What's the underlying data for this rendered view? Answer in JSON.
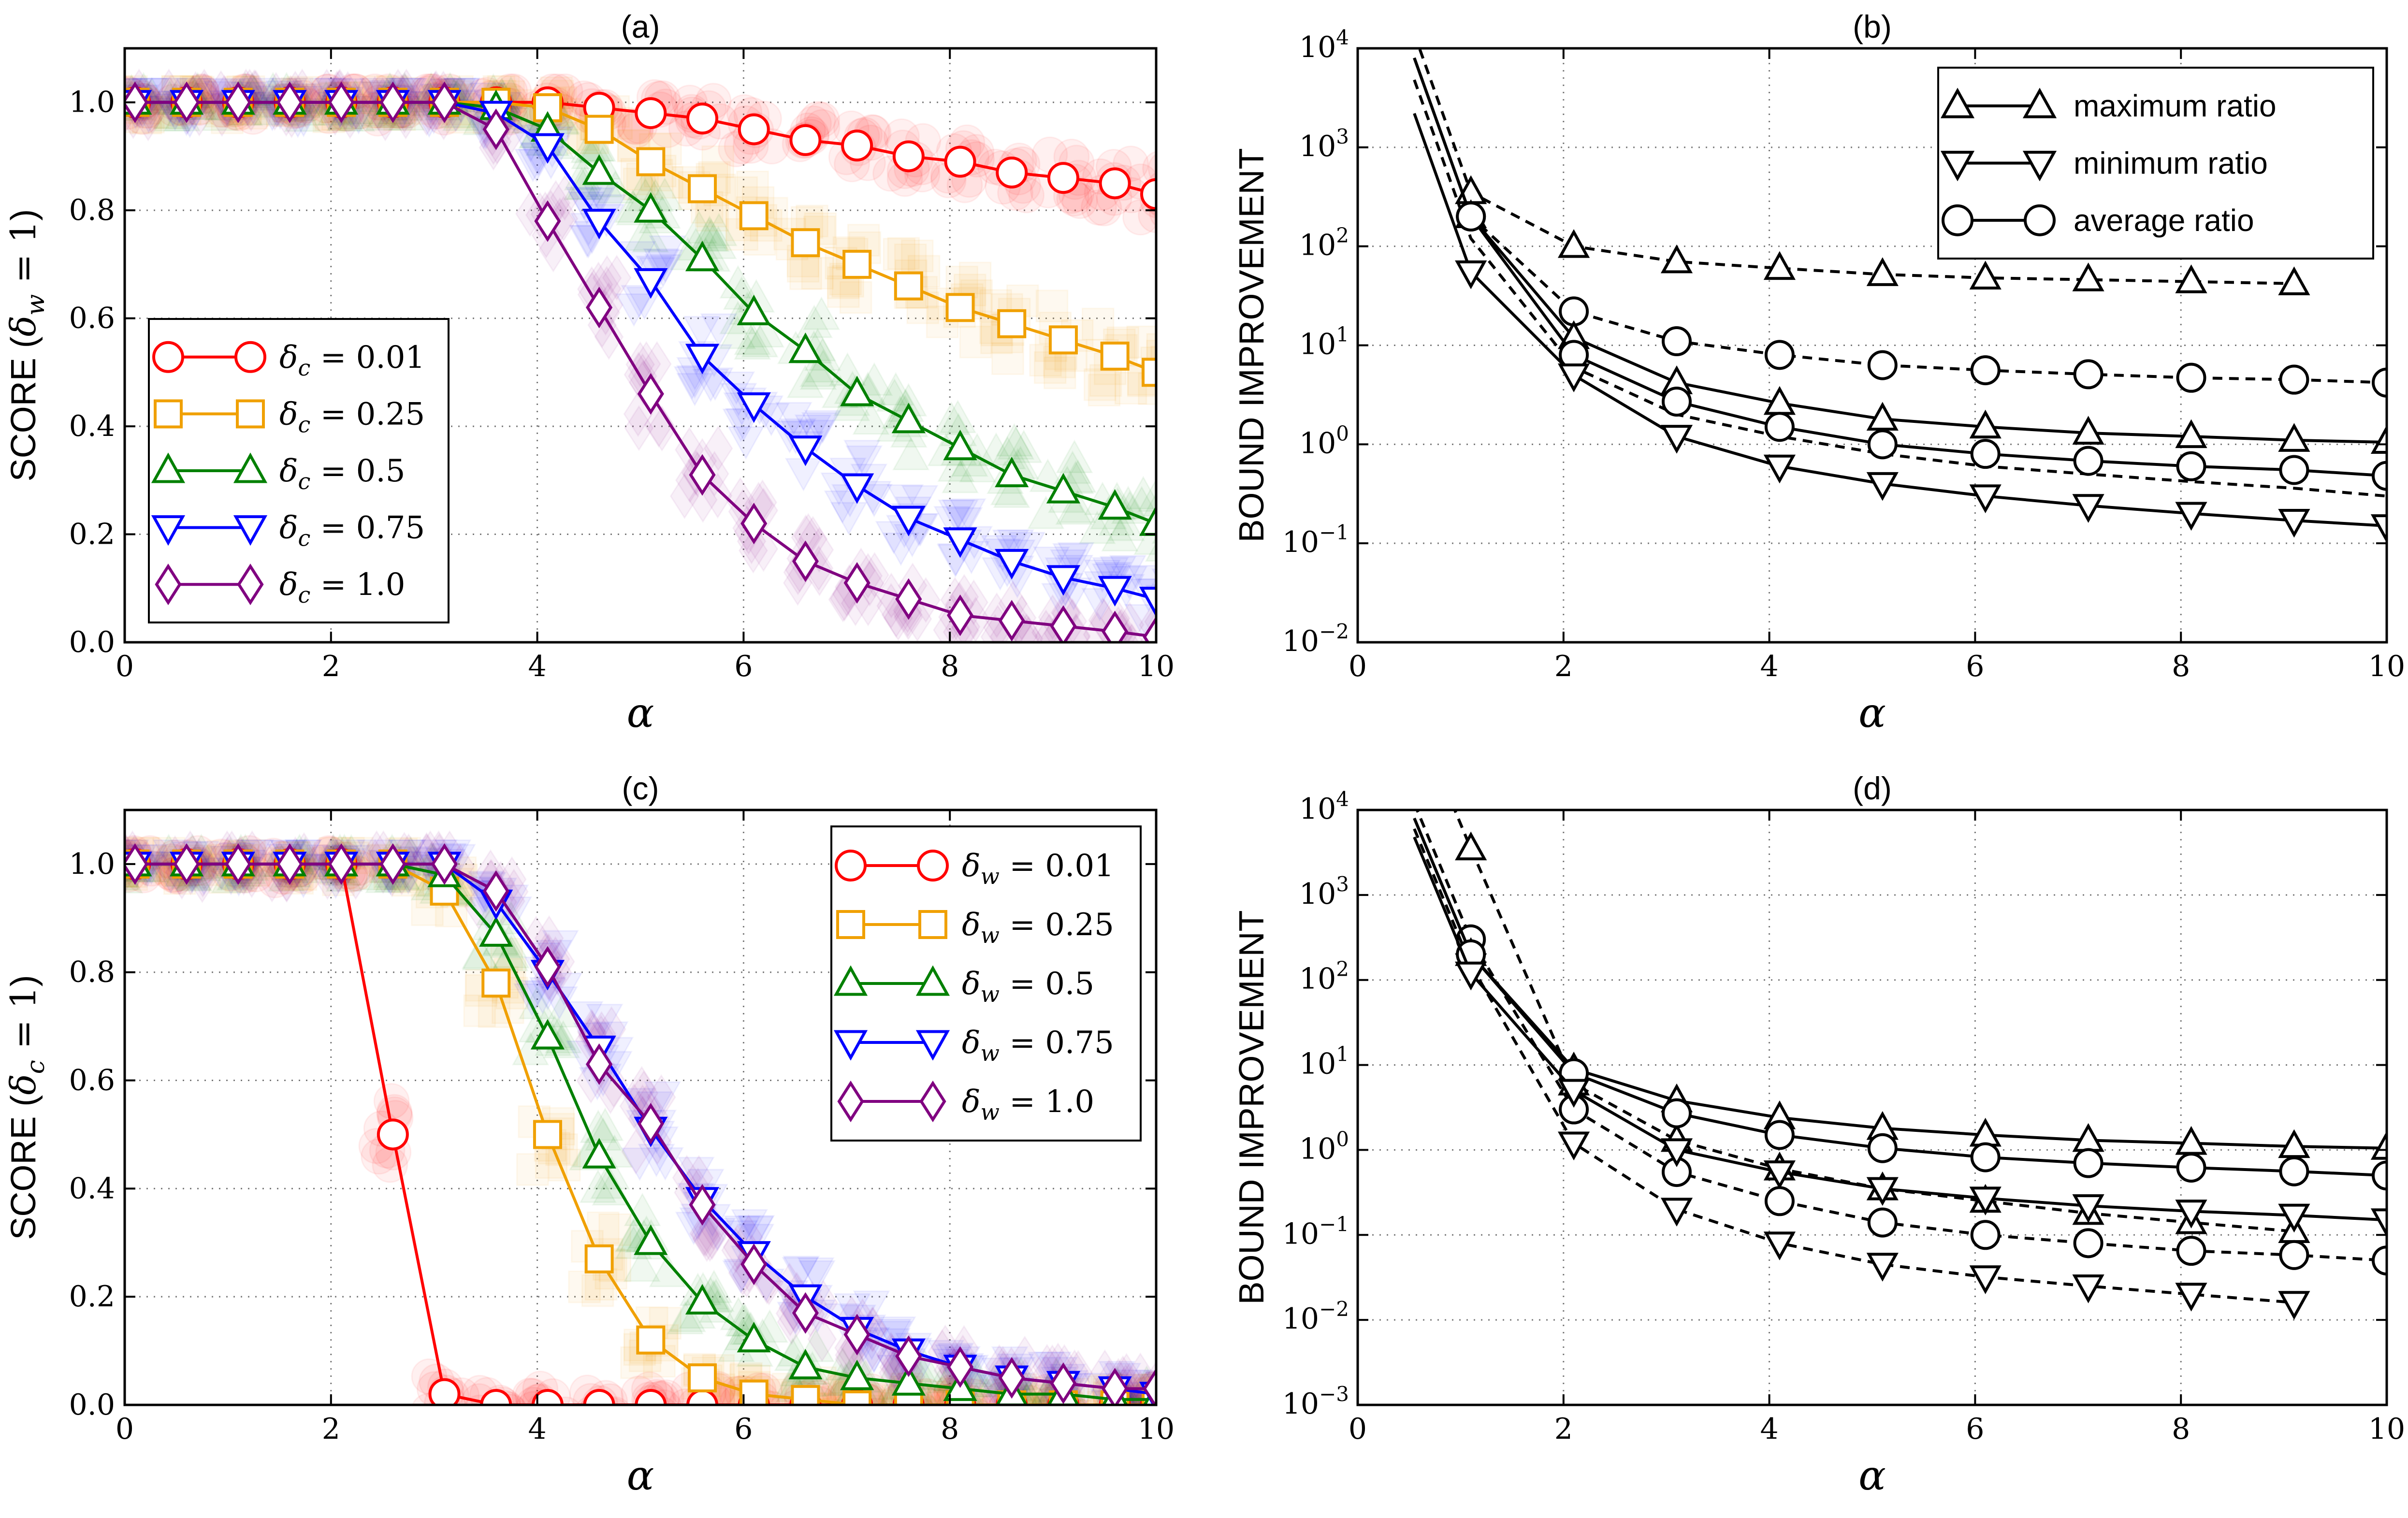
{
  "figure": {
    "panels": [
      "a",
      "b",
      "c",
      "d"
    ]
  },
  "chart_data": [
    {
      "id": "a",
      "type": "line",
      "title": "(a)",
      "xlabel": "α",
      "ylabel": "SCORE (δ_w = 1)",
      "xlim": [
        0,
        10
      ],
      "ylim": [
        0,
        1.1
      ],
      "xticks": [
        0,
        2,
        4,
        6,
        8,
        10
      ],
      "yticks": [
        0.0,
        0.2,
        0.4,
        0.6,
        0.8,
        1.0
      ],
      "ytick_labels": [
        "0.0",
        "0.2",
        "0.4",
        "0.6",
        "0.8",
        "1.0"
      ],
      "grid": true,
      "legend_position": "center-left",
      "series": [
        {
          "name": "δ_c = 0.01",
          "color": "#ff0000",
          "marker": "circle",
          "x": [
            0.1,
            0.6,
            1.1,
            1.6,
            2.1,
            2.6,
            3.1,
            3.6,
            4.1,
            4.6,
            5.1,
            5.6,
            6.1,
            6.6,
            7.1,
            7.6,
            8.1,
            8.6,
            9.1,
            9.6,
            10.0
          ],
          "y": [
            1.0,
            1.0,
            1.0,
            1.0,
            1.0,
            1.0,
            1.0,
            1.0,
            1.0,
            0.99,
            0.98,
            0.97,
            0.95,
            0.93,
            0.92,
            0.9,
            0.89,
            0.87,
            0.86,
            0.85,
            0.83
          ]
        },
        {
          "name": "δ_c = 0.25",
          "color": "#f0a000",
          "marker": "square",
          "x": [
            0.1,
            0.6,
            1.1,
            1.6,
            2.1,
            2.6,
            3.1,
            3.6,
            4.1,
            4.6,
            5.1,
            5.6,
            6.1,
            6.6,
            7.1,
            7.6,
            8.1,
            8.6,
            9.1,
            9.6,
            10.0
          ],
          "y": [
            1.0,
            1.0,
            1.0,
            1.0,
            1.0,
            1.0,
            1.0,
            1.0,
            0.99,
            0.95,
            0.89,
            0.84,
            0.79,
            0.74,
            0.7,
            0.66,
            0.62,
            0.59,
            0.56,
            0.53,
            0.5
          ]
        },
        {
          "name": "δ_c = 0.5",
          "color": "#008000",
          "marker": "triangle-up",
          "x": [
            0.1,
            0.6,
            1.1,
            1.6,
            2.1,
            2.6,
            3.1,
            3.6,
            4.1,
            4.6,
            5.1,
            5.6,
            6.1,
            6.6,
            7.1,
            7.6,
            8.1,
            8.6,
            9.1,
            9.6,
            10.0
          ],
          "y": [
            1.0,
            1.0,
            1.0,
            1.0,
            1.0,
            1.0,
            1.0,
            0.99,
            0.95,
            0.87,
            0.8,
            0.71,
            0.61,
            0.54,
            0.46,
            0.41,
            0.36,
            0.31,
            0.28,
            0.25,
            0.22
          ]
        },
        {
          "name": "δ_c = 0.75",
          "color": "#0000ff",
          "marker": "triangle-down",
          "x": [
            0.1,
            0.6,
            1.1,
            1.6,
            2.1,
            2.6,
            3.1,
            3.6,
            4.1,
            4.6,
            5.1,
            5.6,
            6.1,
            6.6,
            7.1,
            7.6,
            8.1,
            8.6,
            9.1,
            9.6,
            10.0
          ],
          "y": [
            1.0,
            1.0,
            1.0,
            1.0,
            1.0,
            1.0,
            1.0,
            0.98,
            0.92,
            0.78,
            0.67,
            0.53,
            0.44,
            0.36,
            0.29,
            0.23,
            0.19,
            0.15,
            0.12,
            0.1,
            0.08
          ]
        },
        {
          "name": "δ_c = 1.0",
          "color": "#800080",
          "marker": "diamond",
          "x": [
            0.1,
            0.6,
            1.1,
            1.6,
            2.1,
            2.6,
            3.1,
            3.6,
            4.1,
            4.6,
            5.1,
            5.6,
            6.1,
            6.6,
            7.1,
            7.6,
            8.1,
            8.6,
            9.1,
            9.6,
            10.0
          ],
          "y": [
            1.0,
            1.0,
            1.0,
            1.0,
            1.0,
            1.0,
            1.0,
            0.95,
            0.78,
            0.62,
            0.46,
            0.31,
            0.22,
            0.15,
            0.11,
            0.08,
            0.05,
            0.04,
            0.03,
            0.02,
            0.01
          ]
        }
      ]
    },
    {
      "id": "b",
      "type": "line",
      "title": "(b)",
      "xlabel": "α",
      "ylabel": "BOUND IMPROVEMENT",
      "yscale": "log",
      "xlim": [
        0,
        10
      ],
      "ylim_exp": [
        -2,
        4
      ],
      "xticks": [
        0,
        2,
        4,
        6,
        8,
        10
      ],
      "ytick_base": "10",
      "ytick_exponents": [
        "−2",
        "−1",
        "0",
        "1",
        "2",
        "3",
        "4"
      ],
      "grid": true,
      "legend_position": "top-right",
      "legend": [
        {
          "label": "maximum ratio",
          "marker": "triangle-up"
        },
        {
          "label": "minimum ratio",
          "marker": "triangle-down"
        },
        {
          "label": "average ratio",
          "marker": "circle"
        }
      ],
      "series": [
        {
          "name": "maximum ratio (dashed)",
          "style": "dashed",
          "marker": "triangle-up",
          "x": [
            1.1,
            2.1,
            3.1,
            4.1,
            5.1,
            6.1,
            7.1,
            8.1,
            9.1
          ],
          "y": [
            350,
            100,
            70,
            60,
            52,
            48,
            46,
            44,
            42
          ]
        },
        {
          "name": "average ratio (dashed)",
          "style": "dashed",
          "marker": "circle",
          "x": [
            1.1,
            2.1,
            3.1,
            4.1,
            5.1,
            6.1,
            7.1,
            8.1,
            9.1,
            10.0
          ],
          "y": [
            200,
            22,
            11,
            8,
            6.3,
            5.6,
            5.1,
            4.7,
            4.5,
            4.2
          ]
        },
        {
          "name": "minimum ratio (dashed)",
          "style": "dashed",
          "marker": "none",
          "x": [
            1.1,
            2.1,
            3.1,
            4.1,
            5.1,
            6.1,
            7.1,
            8.1,
            9.1,
            10.0
          ],
          "y": [
            120,
            6,
            2.0,
            1.2,
            0.8,
            0.6,
            0.5,
            0.42,
            0.36,
            0.3
          ]
        },
        {
          "name": "maximum ratio (solid)",
          "style": "solid",
          "marker": "triangle-up",
          "x": [
            1.1,
            2.1,
            3.1,
            4.1,
            5.1,
            6.1,
            7.1,
            8.1,
            9.1,
            10.0
          ],
          "y": [
            200,
            12,
            4.2,
            2.6,
            1.8,
            1.5,
            1.3,
            1.2,
            1.1,
            1.05
          ]
        },
        {
          "name": "average ratio (solid)",
          "style": "solid",
          "marker": "circle",
          "x": [
            1.1,
            2.1,
            3.1,
            4.1,
            5.1,
            6.1,
            7.1,
            8.1,
            9.1,
            10.0
          ],
          "y": [
            200,
            8,
            2.7,
            1.5,
            1.0,
            0.8,
            0.68,
            0.6,
            0.55,
            0.48
          ]
        },
        {
          "name": "minimum ratio (solid)",
          "style": "solid",
          "marker": "triangle-down",
          "x": [
            1.1,
            2.1,
            3.1,
            4.1,
            5.1,
            6.1,
            7.1,
            8.1,
            9.1,
            10.0
          ],
          "y": [
            55,
            5,
            1.2,
            0.6,
            0.4,
            0.3,
            0.24,
            0.2,
            0.17,
            0.15
          ]
        }
      ]
    },
    {
      "id": "c",
      "type": "line",
      "title": "(c)",
      "xlabel": "α",
      "ylabel": "SCORE (δ_c = 1)",
      "xlim": [
        0,
        10
      ],
      "ylim": [
        0,
        1.1
      ],
      "xticks": [
        0,
        2,
        4,
        6,
        8,
        10
      ],
      "yticks": [
        0.0,
        0.2,
        0.4,
        0.6,
        0.8,
        1.0
      ],
      "ytick_labels": [
        "0.0",
        "0.2",
        "0.4",
        "0.6",
        "0.8",
        "1.0"
      ],
      "grid": true,
      "legend_position": "top-right",
      "series": [
        {
          "name": "δ_w = 0.01",
          "color": "#ff0000",
          "marker": "circle",
          "x": [
            0.1,
            0.6,
            1.1,
            1.6,
            2.1,
            2.6,
            3.1,
            3.6,
            4.1,
            4.6,
            5.1,
            5.6,
            6.1,
            6.6,
            7.1,
            7.6,
            8.1,
            8.6,
            9.1,
            9.6,
            10.0
          ],
          "y": [
            1.0,
            1.0,
            1.0,
            1.0,
            1.0,
            0.5,
            0.02,
            0.0,
            0.0,
            0.0,
            0.0,
            0.0,
            0.0,
            0.0,
            0.0,
            0.0,
            0.0,
            0.0,
            0.0,
            0.0,
            0.0
          ]
        },
        {
          "name": "δ_w = 0.25",
          "color": "#f0a000",
          "marker": "square",
          "x": [
            0.1,
            0.6,
            1.1,
            1.6,
            2.1,
            2.6,
            3.1,
            3.6,
            4.1,
            4.6,
            5.1,
            5.6,
            6.1,
            6.6,
            7.1,
            7.6,
            8.1,
            8.6,
            9.1,
            9.6,
            10.0
          ],
          "y": [
            1.0,
            1.0,
            1.0,
            1.0,
            1.0,
            1.0,
            0.95,
            0.78,
            0.5,
            0.27,
            0.12,
            0.05,
            0.02,
            0.01,
            0.0,
            0.0,
            0.0,
            0.0,
            0.0,
            0.0,
            0.0
          ]
        },
        {
          "name": "δ_w = 0.5",
          "color": "#008000",
          "marker": "triangle-up",
          "x": [
            0.1,
            0.6,
            1.1,
            1.6,
            2.1,
            2.6,
            3.1,
            3.6,
            4.1,
            4.6,
            5.1,
            5.6,
            6.1,
            6.6,
            7.1,
            7.6,
            8.1,
            8.6,
            9.1,
            9.6,
            10.0
          ],
          "y": [
            1.0,
            1.0,
            1.0,
            1.0,
            1.0,
            1.0,
            0.98,
            0.87,
            0.68,
            0.46,
            0.3,
            0.19,
            0.12,
            0.07,
            0.05,
            0.04,
            0.03,
            0.02,
            0.02,
            0.01,
            0.01
          ]
        },
        {
          "name": "δ_w = 0.75",
          "color": "#0000ff",
          "marker": "triangle-down",
          "x": [
            0.1,
            0.6,
            1.1,
            1.6,
            2.1,
            2.6,
            3.1,
            3.6,
            4.1,
            4.6,
            5.1,
            5.6,
            6.1,
            6.6,
            7.1,
            7.6,
            8.1,
            8.6,
            9.1,
            9.6,
            10.0
          ],
          "y": [
            1.0,
            1.0,
            1.0,
            1.0,
            1.0,
            1.0,
            1.0,
            0.93,
            0.8,
            0.66,
            0.51,
            0.38,
            0.28,
            0.2,
            0.14,
            0.1,
            0.07,
            0.05,
            0.04,
            0.03,
            0.02
          ]
        },
        {
          "name": "δ_w = 1.0",
          "color": "#800080",
          "marker": "diamond",
          "x": [
            0.1,
            0.6,
            1.1,
            1.6,
            2.1,
            2.6,
            3.1,
            3.6,
            4.1,
            4.6,
            5.1,
            5.6,
            6.1,
            6.6,
            7.1,
            7.6,
            8.1,
            8.6,
            9.1,
            9.6,
            10.0
          ],
          "y": [
            1.0,
            1.0,
            1.0,
            1.0,
            1.0,
            1.0,
            1.0,
            0.95,
            0.81,
            0.63,
            0.52,
            0.37,
            0.26,
            0.17,
            0.13,
            0.09,
            0.07,
            0.05,
            0.04,
            0.03,
            0.03
          ]
        }
      ]
    },
    {
      "id": "d",
      "type": "line",
      "title": "(d)",
      "xlabel": "α",
      "ylabel": "BOUND IMPROVEMENT",
      "yscale": "log",
      "xlim": [
        0,
        10
      ],
      "ylim_exp": [
        -3,
        4
      ],
      "xticks": [
        0,
        2,
        4,
        6,
        8,
        10
      ],
      "ytick_base": "10",
      "ytick_exponents": [
        "−3",
        "−2",
        "−1",
        "0",
        "1",
        "2",
        "3",
        "4"
      ],
      "grid": true,
      "series": [
        {
          "name": "maximum ratio (dashed)",
          "style": "dashed",
          "marker": "triangle-up",
          "x": [
            1.1,
            2.1,
            3.1,
            4.1,
            5.1,
            6.1,
            7.1,
            8.1,
            9.1
          ],
          "y": [
            3500,
            6,
            1.3,
            0.6,
            0.35,
            0.25,
            0.18,
            0.14,
            0.11
          ]
        },
        {
          "name": "average ratio (dashed)",
          "style": "dashed",
          "marker": "circle",
          "x": [
            1.1,
            2.1,
            3.1,
            4.1,
            5.1,
            6.1,
            7.1,
            8.1,
            9.1,
            10.0
          ],
          "y": [
            300,
            3,
            0.55,
            0.25,
            0.14,
            0.1,
            0.08,
            0.065,
            0.058,
            0.05
          ]
        },
        {
          "name": "minimum ratio (dashed)",
          "style": "dashed",
          "marker": "triangle-down",
          "x": [
            1.1,
            2.1,
            3.1,
            4.1,
            5.1,
            6.1,
            7.1,
            8.1,
            9.1
          ],
          "y": [
            150,
            1.2,
            0.2,
            0.08,
            0.045,
            0.032,
            0.025,
            0.02,
            0.016
          ]
        },
        {
          "name": "maximum ratio (solid)",
          "style": "solid",
          "marker": "triangle-up",
          "x": [
            1.1,
            2.1,
            3.1,
            4.1,
            5.1,
            6.1,
            7.1,
            8.1,
            9.1,
            10.0
          ],
          "y": [
            200,
            9,
            3.8,
            2.4,
            1.8,
            1.5,
            1.3,
            1.2,
            1.1,
            1.05
          ]
        },
        {
          "name": "average ratio (solid)",
          "style": "solid",
          "marker": "circle",
          "x": [
            1.1,
            2.1,
            3.1,
            4.1,
            5.1,
            6.1,
            7.1,
            8.1,
            9.1,
            10.0
          ],
          "y": [
            200,
            8,
            2.7,
            1.5,
            1.05,
            0.82,
            0.7,
            0.62,
            0.56,
            0.5
          ]
        },
        {
          "name": "minimum ratio (solid)",
          "style": "solid",
          "marker": "triangle-down",
          "x": [
            1.1,
            2.1,
            3.1,
            4.1,
            5.1,
            6.1,
            7.1,
            8.1,
            9.1,
            10.0
          ],
          "y": [
            120,
            5,
            1.0,
            0.55,
            0.35,
            0.27,
            0.22,
            0.19,
            0.17,
            0.15
          ]
        }
      ]
    }
  ]
}
